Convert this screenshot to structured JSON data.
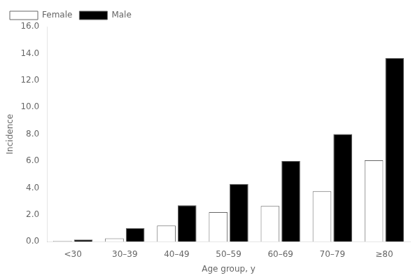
{
  "chart_data": {
    "type": "bar",
    "categories": [
      "<30",
      "30–39",
      "40–49",
      "50–59",
      "60–69",
      "70–79",
      "≥80"
    ],
    "series": [
      {
        "name": "Female",
        "color": "#ffffff",
        "values": [
          0.05,
          0.25,
          1.2,
          2.2,
          2.65,
          3.75,
          6.05
        ]
      },
      {
        "name": "Male",
        "color": "#000000",
        "values": [
          0.15,
          1.0,
          2.7,
          4.3,
          6.0,
          8.0,
          13.65
        ]
      }
    ],
    "xlabel": "Age group, y",
    "ylabel": "Incidence",
    "ylim": [
      0,
      16.0
    ],
    "yticks": [
      {
        "value": 0.0,
        "label": "0.0"
      },
      {
        "value": 2.0,
        "label": "2.0"
      },
      {
        "value": 4.0,
        "label": "4.0"
      },
      {
        "value": 6.0,
        "label": "6.0"
      },
      {
        "value": 8.0,
        "label": "8.0"
      },
      {
        "value": 10.0,
        "label": "10.0"
      },
      {
        "value": 12.0,
        "label": "12.0"
      },
      {
        "value": 14.0,
        "label": "14.0"
      },
      {
        "value": 16.0,
        "label": "16.0"
      }
    ],
    "grid": false,
    "legend": "upper left"
  }
}
